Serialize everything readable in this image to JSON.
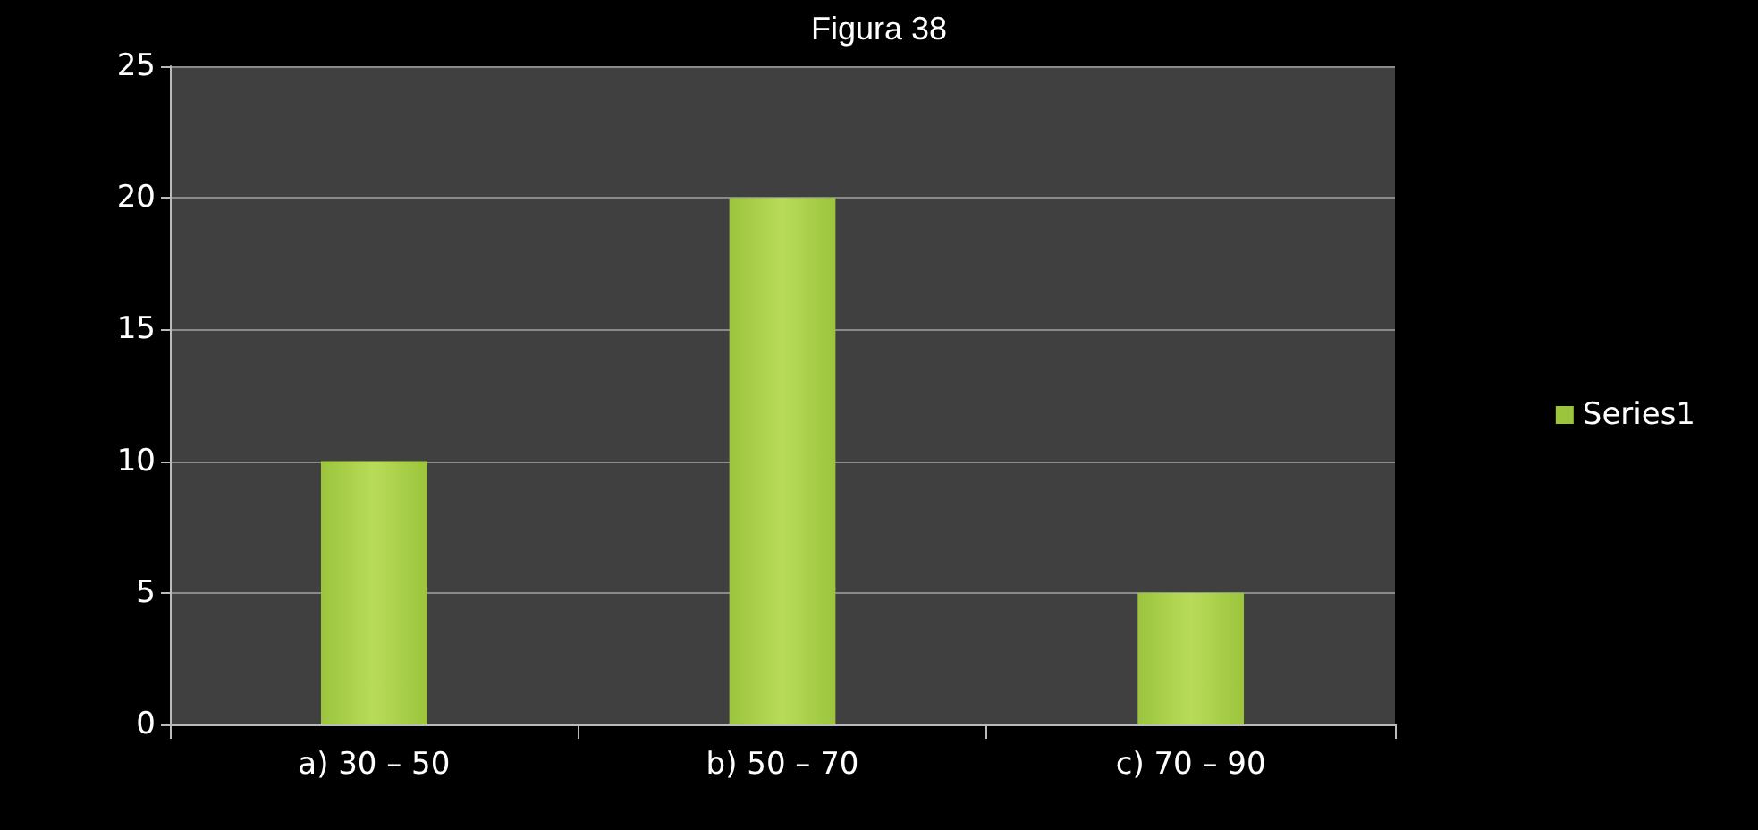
{
  "chart_data": {
    "type": "bar",
    "title": "Figura 38",
    "categories": [
      "a) 30 – 50",
      "b) 50 – 70",
      "c) 70 – 90"
    ],
    "series": [
      {
        "name": "Series1",
        "color": "#9cc43c",
        "values": [
          10,
          20,
          5
        ]
      }
    ],
    "ylim": [
      0,
      25
    ],
    "yticks": [
      0,
      5,
      10,
      15,
      20,
      25
    ],
    "grid": "y",
    "legend": "right"
  }
}
